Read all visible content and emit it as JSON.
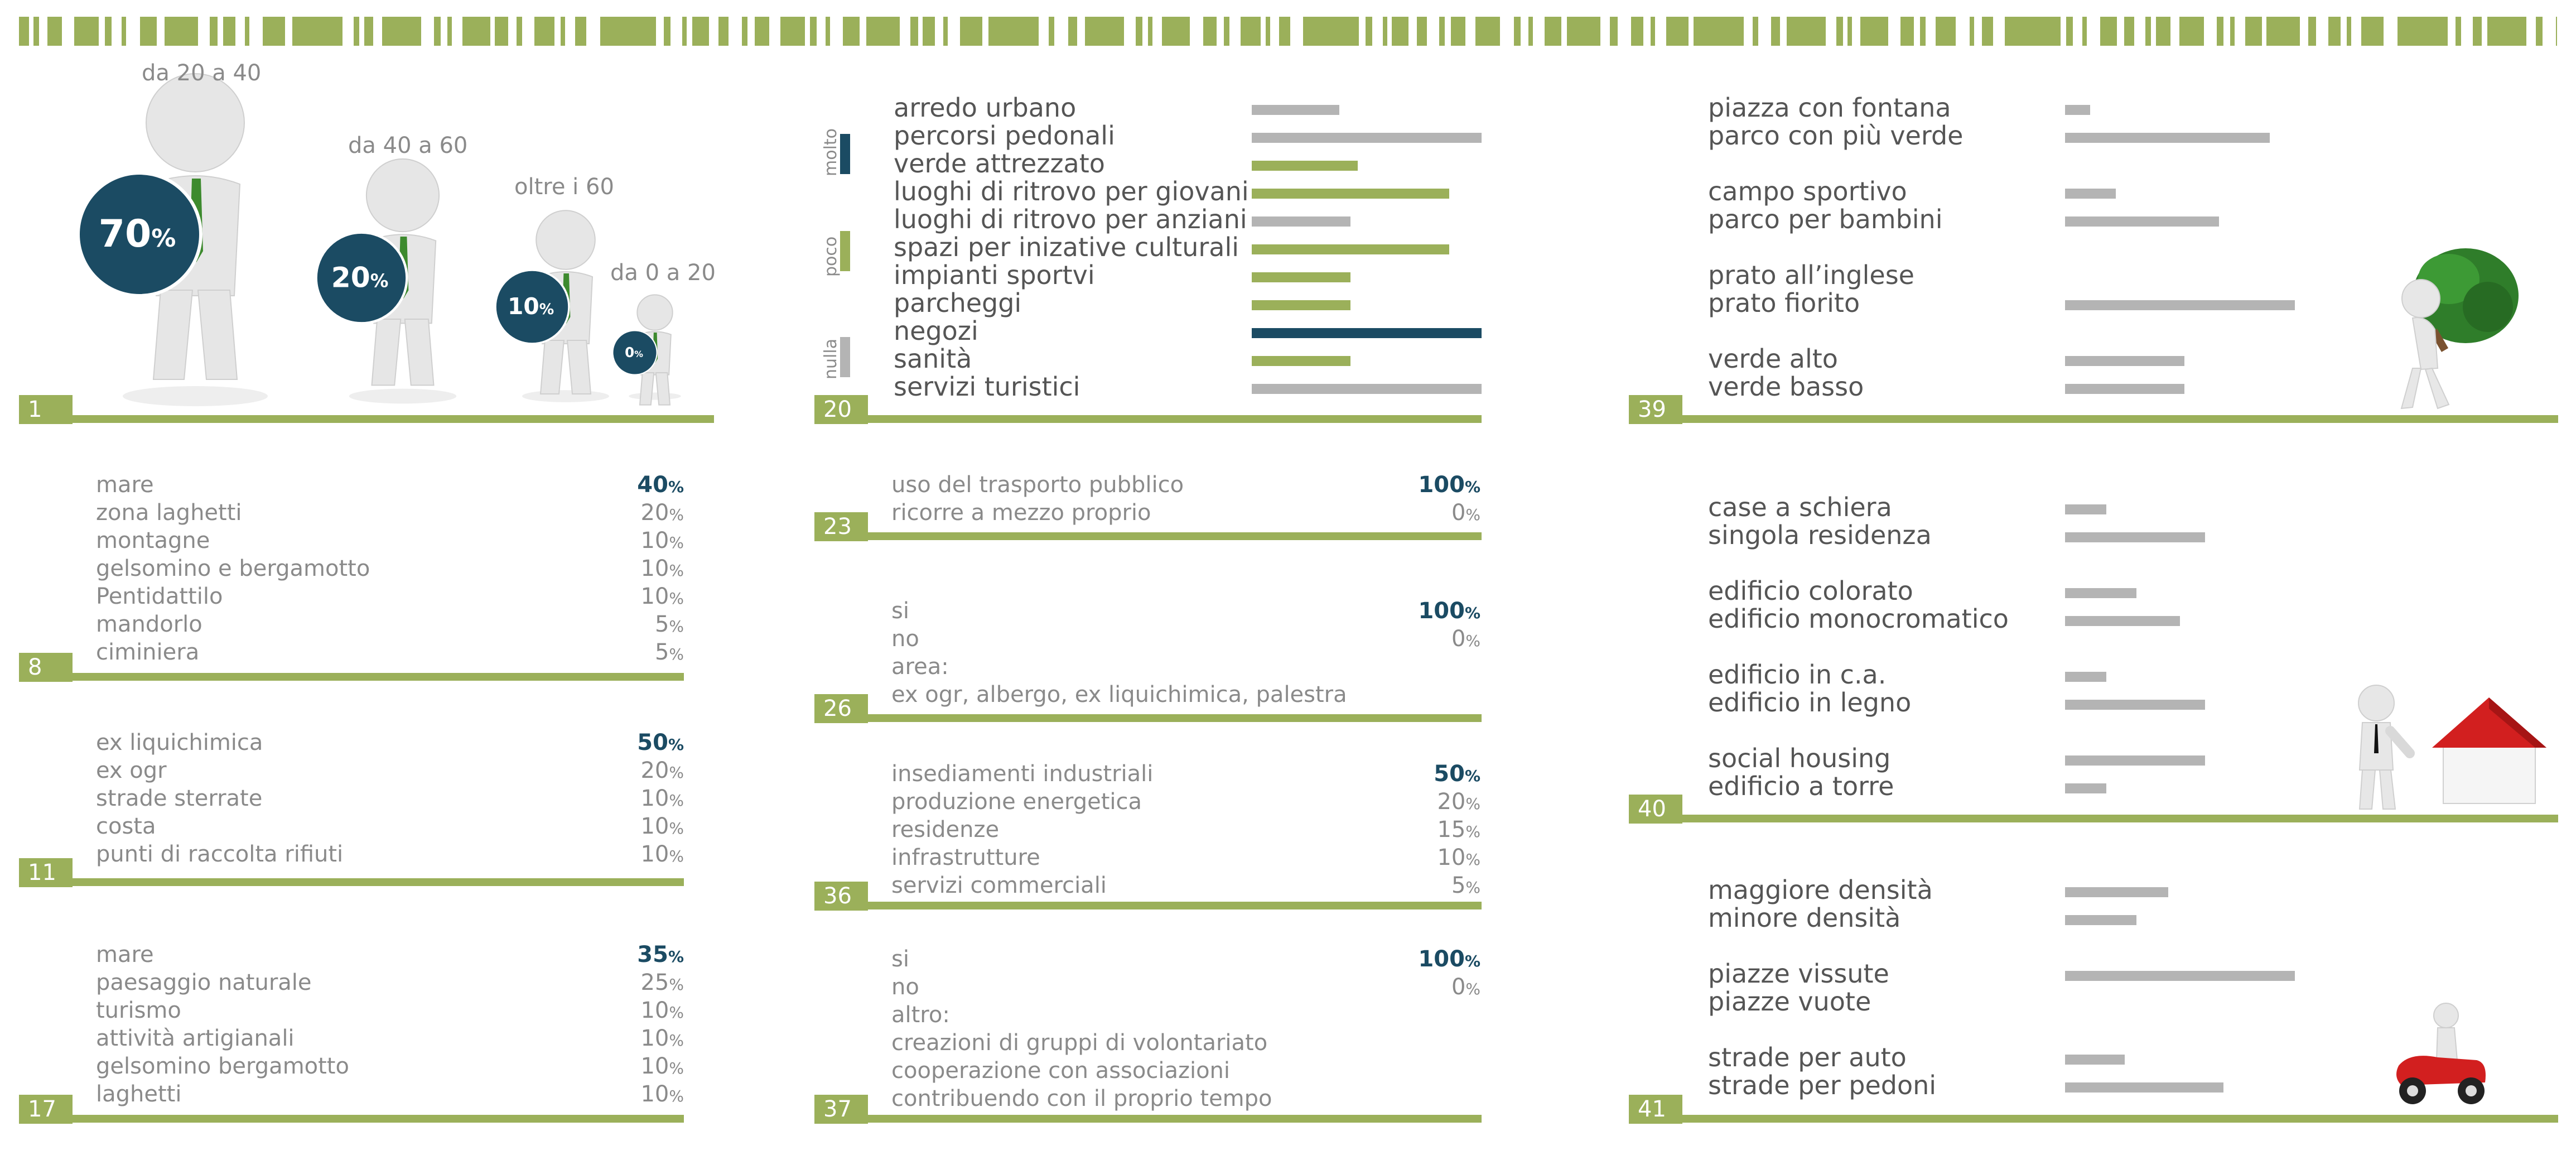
{
  "colors": {
    "green": "#9bb05a",
    "grey": "#b4b4b4",
    "navy": "#1b4b63",
    "text": "#8a8a8a"
  },
  "q1": {
    "num": "1",
    "groups": [
      {
        "label": "da 20 a 40",
        "value": "70",
        "unit": "%"
      },
      {
        "label": "da 40 a 60",
        "value": "20",
        "unit": "%"
      },
      {
        "label": "oltre i 60",
        "value": "10",
        "unit": "%"
      },
      {
        "label": "da 0 a 20",
        "value": "0",
        "unit": "%"
      }
    ]
  },
  "q20": {
    "num": "20",
    "legend": [
      "molto",
      "poco",
      "nulla"
    ],
    "items": [
      {
        "label": "arredo urbano",
        "value": 0.38,
        "level": "nulla"
      },
      {
        "label": "percorsi pedonali",
        "value": 1.0,
        "level": "nulla"
      },
      {
        "label": "verde attrezzato",
        "value": 0.46,
        "level": "poco"
      },
      {
        "label": "luoghi di ritrovo per giovani",
        "value": 0.86,
        "level": "poco"
      },
      {
        "label": "luoghi di ritrovo per anziani",
        "value": 0.43,
        "level": "nulla"
      },
      {
        "label": "spazi per inizative culturali",
        "value": 0.86,
        "level": "poco"
      },
      {
        "label": "impianti sportvi",
        "value": 0.43,
        "level": "poco"
      },
      {
        "label": "parcheggi",
        "value": 0.43,
        "level": "poco"
      },
      {
        "label": "negozi",
        "value": 1.0,
        "level": "molto"
      },
      {
        "label": "sanità",
        "value": 0.43,
        "level": "poco"
      },
      {
        "label": "servizi turistici",
        "value": 1.0,
        "level": "nulla"
      }
    ]
  },
  "q39": {
    "num": "39",
    "groups": [
      [
        {
          "label": "piazza con fontana",
          "value": 0.11
        },
        {
          "label": "parco con più verde",
          "value": 0.89
        }
      ],
      [
        {
          "label": "campo sportivo",
          "value": 0.22
        },
        {
          "label": "parco per bambini",
          "value": 0.67
        }
      ],
      [
        {
          "label": "prato all’inglese",
          "value": 0.0
        },
        {
          "label": "prato fiorito",
          "value": 1.0
        }
      ],
      [
        {
          "label": "verde alto",
          "value": 0.52
        },
        {
          "label": "verde basso",
          "value": 0.52
        }
      ]
    ]
  },
  "q8": {
    "num": "8",
    "items": [
      {
        "label": "mare",
        "value": "40",
        "unit": "%"
      },
      {
        "label": "zona laghetti",
        "value": "20",
        "unit": "%"
      },
      {
        "label": "montagne",
        "value": "10",
        "unit": "%"
      },
      {
        "label": "gelsomino e bergamotto",
        "value": "10",
        "unit": "%"
      },
      {
        "label": "Pentidattilo",
        "value": "10",
        "unit": "%"
      },
      {
        "label": "mandorlo",
        "value": "5",
        "unit": "%"
      },
      {
        "label": "ciminiera",
        "value": "5",
        "unit": "%"
      }
    ]
  },
  "q23": {
    "num": "23",
    "items": [
      {
        "label": "uso del trasporto pubblico",
        "value": "100",
        "unit": "%"
      },
      {
        "label": "ricorre a mezzo proprio",
        "value": "0",
        "unit": "%"
      }
    ]
  },
  "q40": {
    "num": "40",
    "groups": [
      [
        {
          "label": "case a schiera",
          "value": 0.18
        },
        {
          "label": "singola residenza",
          "value": 0.61
        }
      ],
      [
        {
          "label": "edificio colorato",
          "value": 0.31
        },
        {
          "label": "edificio monocromatico",
          "value": 0.5
        }
      ],
      [
        {
          "label": "edificio in c.a.",
          "value": 0.18
        },
        {
          "label": "edificio in legno",
          "value": 0.61
        }
      ],
      [
        {
          "label": "social housing",
          "value": 0.61
        },
        {
          "label": "edificio a torre",
          "value": 0.18
        }
      ]
    ]
  },
  "q26": {
    "num": "26",
    "items": [
      {
        "label": "si",
        "value": "100",
        "unit": "%"
      },
      {
        "label": "no",
        "value": "0",
        "unit": "%"
      }
    ],
    "extra": [
      "area:",
      "ex ogr, albergo, ex liquichimica, palestra"
    ]
  },
  "q11": {
    "num": "11",
    "items": [
      {
        "label": "ex liquichimica",
        "value": "50",
        "unit": "%"
      },
      {
        "label": "ex ogr",
        "value": "20",
        "unit": "%"
      },
      {
        "label": "strade sterrate",
        "value": "10",
        "unit": "%"
      },
      {
        "label": "costa",
        "value": "10",
        "unit": "%"
      },
      {
        "label": "punti di raccolta rifiuti",
        "value": "10",
        "unit": "%"
      }
    ]
  },
  "q36": {
    "num": "36",
    "items": [
      {
        "label": "insediamenti industriali",
        "value": "50",
        "unit": "%"
      },
      {
        "label": "produzione energetica",
        "value": "20",
        "unit": "%"
      },
      {
        "label": "residenze",
        "value": "15",
        "unit": "%"
      },
      {
        "label": "infrastrutture",
        "value": "10",
        "unit": "%"
      },
      {
        "label": "servizi commerciali",
        "value": "5",
        "unit": "%"
      }
    ]
  },
  "q41": {
    "num": "41",
    "groups": [
      [
        {
          "label": "maggiore densità",
          "value": 0.45
        },
        {
          "label": "minore densità",
          "value": 0.31
        }
      ],
      [
        {
          "label": "piazze vissute",
          "value": 1.0
        },
        {
          "label": "piazze vuote",
          "value": 0.0
        }
      ],
      [
        {
          "label": "strade per auto",
          "value": 0.26
        },
        {
          "label": "strade per pedoni",
          "value": 0.69
        }
      ]
    ]
  },
  "q17": {
    "num": "17",
    "items": [
      {
        "label": "mare",
        "value": "35",
        "unit": "%"
      },
      {
        "label": "paesaggio naturale",
        "value": "25",
        "unit": "%"
      },
      {
        "label": "turismo",
        "value": "10",
        "unit": "%"
      },
      {
        "label": "attività artigianali",
        "value": "10",
        "unit": "%"
      },
      {
        "label": "gelsomino bergamotto",
        "value": "10",
        "unit": "%"
      },
      {
        "label": "laghetti",
        "value": "10",
        "unit": "%"
      }
    ]
  },
  "q37": {
    "num": "37",
    "items": [
      {
        "label": "si",
        "value": "100",
        "unit": "%"
      },
      {
        "label": "no",
        "value": "0",
        "unit": "%"
      }
    ],
    "extra": [
      "altro:",
      "creazioni di gruppi di volontariato",
      "cooperazione con associazioni",
      "contribuendo con il proprio tempo"
    ]
  },
  "chart_data": [
    {
      "type": "bar",
      "categories": [
        "da 20 a 40",
        "da 40 a 60",
        "oltre i 60",
        "da 0 a 20"
      ],
      "values": [
        70,
        20,
        10,
        0
      ]
    },
    {
      "type": "bar",
      "categories": [
        "arredo urbano",
        "percorsi pedonali",
        "verde attrezzato",
        "luoghi di ritrovo per giovani",
        "luoghi di ritrovo per anziani",
        "spazi per inizative culturali",
        "impianti sportvi",
        "parcheggi",
        "negozi",
        "sanità",
        "servizi turistici"
      ],
      "values": [
        0.38,
        1.0,
        0.46,
        0.86,
        0.43,
        0.86,
        0.43,
        0.43,
        1.0,
        0.43,
        1.0
      ],
      "legend": [
        "molto",
        "poco",
        "nulla"
      ]
    },
    {
      "type": "table",
      "categories": [
        "mare",
        "zona laghetti",
        "montagne",
        "gelsomino e bergamotto",
        "Pentidattilo",
        "mandorlo",
        "ciminiera"
      ],
      "values": [
        40,
        20,
        10,
        10,
        10,
        5,
        5
      ]
    },
    {
      "type": "table",
      "categories": [
        "ex liquichimica",
        "ex ogr",
        "strade sterrate",
        "costa",
        "punti di raccolta rifiuti"
      ],
      "values": [
        50,
        20,
        10,
        10,
        10
      ]
    },
    {
      "type": "table",
      "categories": [
        "mare",
        "paesaggio naturale",
        "turismo",
        "attività artigianali",
        "gelsomino bergamotto",
        "laghetti"
      ],
      "values": [
        35,
        25,
        10,
        10,
        10,
        10
      ]
    },
    {
      "type": "table",
      "categories": [
        "uso del trasporto pubblico",
        "ricorre a mezzo proprio"
      ],
      "values": [
        100,
        0
      ]
    },
    {
      "type": "table",
      "categories": [
        "si",
        "no"
      ],
      "values": [
        100,
        0
      ]
    },
    {
      "type": "table",
      "categories": [
        "insediamenti industriali",
        "produzione energetica",
        "residenze",
        "infrastrutture",
        "servizi commerciali"
      ],
      "values": [
        50,
        20,
        15,
        10,
        5
      ]
    },
    {
      "type": "table",
      "categories": [
        "si",
        "no"
      ],
      "values": [
        100,
        0
      ]
    },
    {
      "type": "bar",
      "categories": [
        "piazza con fontana",
        "parco con più verde",
        "campo sportivo",
        "parco per bambini",
        "prato all’inglese",
        "prato fiorito",
        "verde alto",
        "verde basso"
      ],
      "values": [
        0.11,
        0.89,
        0.22,
        0.67,
        0.0,
        1.0,
        0.52,
        0.52
      ]
    },
    {
      "type": "bar",
      "categories": [
        "case a schiera",
        "singola residenza",
        "edificio colorato",
        "edificio monocromatico",
        "edificio in c.a.",
        "edificio in legno",
        "social housing",
        "edificio a torre"
      ],
      "values": [
        0.18,
        0.61,
        0.31,
        0.5,
        0.18,
        0.61,
        0.61,
        0.18
      ]
    },
    {
      "type": "bar",
      "categories": [
        "maggiore densità",
        "minore densità",
        "piazze vissute",
        "piazze vuote",
        "strade per auto",
        "strade per pedoni"
      ],
      "values": [
        0.45,
        0.31,
        1.0,
        0.0,
        0.26,
        0.69
      ]
    }
  ]
}
